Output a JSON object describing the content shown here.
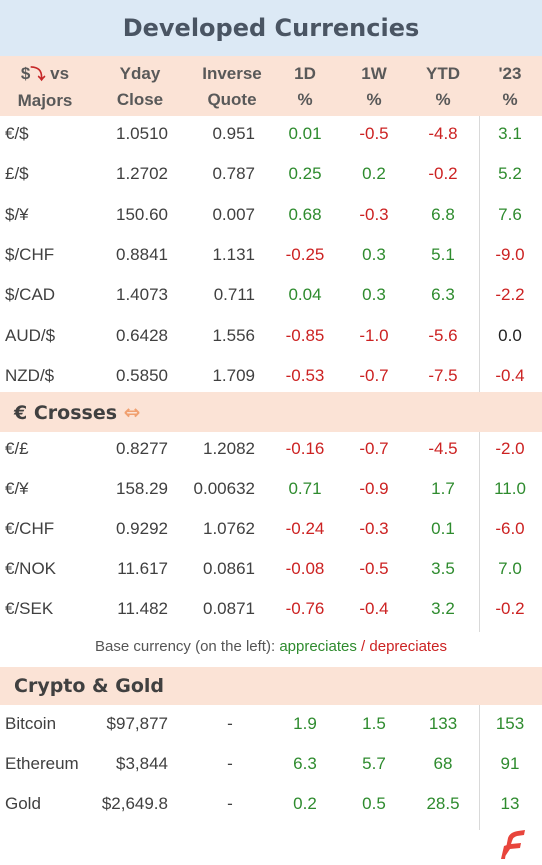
{
  "title": "Developed Currencies",
  "headers": {
    "pair_line1": "$",
    "pair_line1_suffix": "vs",
    "pair_line2": "Majors",
    "close_line1": "Yday",
    "close_line2": "Close",
    "inverse_line1": "Inverse",
    "inverse_line2": "Quote",
    "d1_line1": "1D",
    "d1_line2": "%",
    "w1_line1": "1W",
    "w1_line2": "%",
    "ytd_line1": "YTD",
    "ytd_line2": "%",
    "y23_line1": "'23",
    "y23_line2": "%"
  },
  "majors": [
    {
      "pair": "€/$",
      "close": "1.0510",
      "inverse": "0.951",
      "d1": "0.01",
      "w1": "-0.5",
      "ytd": "-4.8",
      "y23": "3.1"
    },
    {
      "pair": "£/$",
      "close": "1.2702",
      "inverse": "0.787",
      "d1": "0.25",
      "w1": "0.2",
      "ytd": "-0.2",
      "y23": "5.2"
    },
    {
      "pair": "$/¥",
      "close": "150.60",
      "inverse": "0.007",
      "d1": "0.68",
      "w1": "-0.3",
      "ytd": "6.8",
      "y23": "7.6"
    },
    {
      "pair": "$/CHF",
      "close": "0.8841",
      "inverse": "1.131",
      "d1": "-0.25",
      "w1": "0.3",
      "ytd": "5.1",
      "y23": "-9.0"
    },
    {
      "pair": "$/CAD",
      "close": "1.4073",
      "inverse": "0.711",
      "d1": "0.04",
      "w1": "0.3",
      "ytd": "6.3",
      "y23": "-2.2"
    },
    {
      "pair": "AUD/$",
      "close": "0.6428",
      "inverse": "1.556",
      "d1": "-0.85",
      "w1": "-1.0",
      "ytd": "-5.6",
      "y23": "0.0"
    },
    {
      "pair": "NZD/$",
      "close": "0.5850",
      "inverse": "1.709",
      "d1": "-0.53",
      "w1": "-0.7",
      "ytd": "-7.5",
      "y23": "-0.4"
    }
  ],
  "crosses_title": "€ Crosses",
  "crosses": [
    {
      "pair": "€/£",
      "close": "0.8277",
      "inverse": "1.2082",
      "d1": "-0.16",
      "w1": "-0.7",
      "ytd": "-4.5",
      "y23": "-2.0"
    },
    {
      "pair": "€/¥",
      "close": "158.29",
      "inverse": "0.00632",
      "d1": "0.71",
      "w1": "-0.9",
      "ytd": "1.7",
      "y23": "11.0"
    },
    {
      "pair": "€/CHF",
      "close": "0.9292",
      "inverse": "1.0762",
      "d1": "-0.24",
      "w1": "-0.3",
      "ytd": "0.1",
      "y23": "-6.0"
    },
    {
      "pair": "€/NOK",
      "close": "11.617",
      "inverse": "0.0861",
      "d1": "-0.08",
      "w1": "-0.5",
      "ytd": "3.5",
      "y23": "7.0"
    },
    {
      "pair": "€/SEK",
      "close": "11.482",
      "inverse": "0.0871",
      "d1": "-0.76",
      "w1": "-0.4",
      "ytd": "3.2",
      "y23": "-0.2"
    }
  ],
  "note": {
    "prefix": "Base currency (on the left):",
    "appreciates": "appreciates",
    "separator": "/",
    "depreciates": "depreciates"
  },
  "crypto_title": "Crypto & Gold",
  "crypto": [
    {
      "pair": "Bitcoin",
      "close": "$97,877",
      "inverse": "-",
      "d1": "1.9",
      "w1": "1.5",
      "ytd": "133",
      "y23": "153"
    },
    {
      "pair": "Ethereum",
      "close": "$3,844",
      "inverse": "-",
      "d1": "6.3",
      "w1": "5.7",
      "ytd": "68",
      "y23": "91"
    },
    {
      "pair": "Gold",
      "close": "$2,649.8",
      "inverse": "-",
      "d1": "0.2",
      "w1": "0.5",
      "ytd": "28.5",
      "y23": "13"
    }
  ],
  "colors": {
    "title_bg": "#dce9f5",
    "band_bg": "#fbe3d6",
    "positive": "#2e8b2e",
    "negative": "#cc2222",
    "logo": "#e8453c"
  }
}
